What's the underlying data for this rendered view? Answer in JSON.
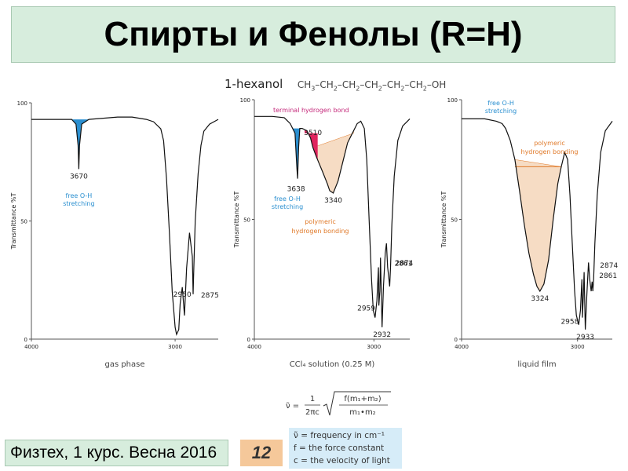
{
  "slide": {
    "title": "Спирты и Фенолы (R=H)",
    "footer": "Физтех, 1 курс. Весна 2016",
    "page_number": "12"
  },
  "compound": {
    "name": "1-hexanol",
    "formula_parts": [
      "CH",
      "3",
      "–CH",
      "2",
      "–CH",
      "2",
      "–CH",
      "2",
      "–CH",
      "2",
      "–CH",
      "2",
      "–OH"
    ]
  },
  "formula": {
    "lhs": "ν̃ =",
    "frac_num": "1",
    "frac_den": "2πc",
    "sqrt_num": "f(m₁+m₂)",
    "sqrt_den": "m₁•m₂"
  },
  "legend": {
    "line1": "ν̃ = frequency in cm⁻¹",
    "line2": "f = the force constant",
    "line3": "c = the velocity of light"
  },
  "colors": {
    "title_bg": "#d7eddd",
    "page_bg": "#f5c89a",
    "legend_bg": "#d6ecf8",
    "free_oh": "#2a8fd0",
    "terminal": "#e0245e",
    "polymeric_fill": "#f6dcc4",
    "polymeric_label": "#e07a2a",
    "terminal_label": "#c4287a"
  },
  "chart_data": [
    {
      "type": "line",
      "caption": "gas phase",
      "ylabel": "Transmittance %T",
      "xlim": [
        4000,
        2700
      ],
      "ylim": [
        0,
        100
      ],
      "x_ticks": [
        4000,
        3000
      ],
      "y_ticks": [
        0,
        50,
        100
      ],
      "series": [
        {
          "points": [
            [
              4000,
              93
            ],
            [
              3850,
              93
            ],
            [
              3720,
              93
            ],
            [
              3690,
              91
            ],
            [
              3675,
              82
            ],
            [
              3670,
              72
            ],
            [
              3665,
              82
            ],
            [
              3650,
              91
            ],
            [
              3600,
              93
            ],
            [
              3400,
              94
            ],
            [
              3300,
              94
            ],
            [
              3200,
              93
            ],
            [
              3150,
              92
            ],
            [
              3100,
              89
            ],
            [
              3080,
              84
            ],
            [
              3060,
              68
            ],
            [
              3040,
              45
            ],
            [
              3020,
              20
            ],
            [
              3000,
              5
            ],
            [
              2990,
              2
            ],
            [
              2975,
              4
            ],
            [
              2965,
              15
            ],
            [
              2950,
              22
            ],
            [
              2935,
              10
            ],
            [
              2920,
              30
            ],
            [
              2900,
              45
            ],
            [
              2880,
              35
            ],
            [
              2875,
              19
            ],
            [
              2870,
              30
            ],
            [
              2860,
              50
            ],
            [
              2840,
              70
            ],
            [
              2820,
              82
            ],
            [
              2800,
              88
            ],
            [
              2760,
              91
            ],
            [
              2700,
              93
            ]
          ]
        }
      ],
      "peaks": [
        {
          "x": 3670,
          "label": "3670"
        },
        {
          "x": 2950,
          "label": "2950"
        },
        {
          "x": 2875,
          "label": "2875"
        }
      ],
      "annotations": [
        {
          "text": "free O-H",
          "color": "free_oh"
        },
        {
          "text": "stretching",
          "color": "free_oh"
        }
      ]
    },
    {
      "type": "line",
      "caption": "CCl₄ solution (0.25 M)",
      "ylabel": "Transmittance %T",
      "xlim": [
        4000,
        2700
      ],
      "ylim": [
        0,
        100
      ],
      "x_ticks": [
        4000,
        3000
      ],
      "y_ticks": [
        0,
        50,
        100
      ],
      "series": [
        {
          "points": [
            [
              4000,
              93
            ],
            [
              3850,
              93
            ],
            [
              3750,
              92.5
            ],
            [
              3700,
              90
            ],
            [
              3660,
              86
            ],
            [
              3645,
              72
            ],
            [
              3638,
              67
            ],
            [
              3630,
              80
            ],
            [
              3620,
              88
            ],
            [
              3600,
              88
            ],
            [
              3560,
              87
            ],
            [
              3530,
              84
            ],
            [
              3510,
              80
            ],
            [
              3480,
              76
            ],
            [
              3430,
              70
            ],
            [
              3390,
              65
            ],
            [
              3370,
              62
            ],
            [
              3340,
              61
            ],
            [
              3300,
              66
            ],
            [
              3260,
              74
            ],
            [
              3220,
              82
            ],
            [
              3180,
              86
            ],
            [
              3140,
              90
            ],
            [
              3110,
              91
            ],
            [
              3080,
              88
            ],
            [
              3060,
              75
            ],
            [
              3040,
              50
            ],
            [
              3020,
              25
            ],
            [
              3005,
              12
            ],
            [
              2990,
              9
            ],
            [
              2975,
              16
            ],
            [
              2962,
              30
            ],
            [
              2959,
              14
            ],
            [
              2950,
              20
            ],
            [
              2945,
              34
            ],
            [
              2932,
              5
            ],
            [
              2920,
              22
            ],
            [
              2905,
              36
            ],
            [
              2895,
              40
            ],
            [
              2885,
              30
            ],
            [
              2874,
              25
            ],
            [
              2868,
              22
            ],
            [
              2861,
              30
            ],
            [
              2850,
              48
            ],
            [
              2830,
              68
            ],
            [
              2800,
              83
            ],
            [
              2760,
              89
            ],
            [
              2700,
              92
            ]
          ]
        }
      ],
      "peaks": [
        {
          "x": 3638,
          "label": "3638"
        },
        {
          "x": 3510,
          "label": "3510"
        },
        {
          "x": 3340,
          "label": "3340"
        },
        {
          "x": 2959,
          "label": "2959"
        },
        {
          "x": 2932,
          "label": "2932"
        },
        {
          "x": 2874,
          "label": "2874"
        },
        {
          "x": 2861,
          "label": "2861"
        }
      ],
      "annotations": [
        {
          "text": "terminal hydrogen bond",
          "color": "terminal_label"
        },
        {
          "text": "free O-H",
          "color": "free_oh"
        },
        {
          "text": "stretching",
          "color": "free_oh"
        },
        {
          "text": "polymeric",
          "color": "polymeric_label"
        },
        {
          "text": "hydrogen bonding",
          "color": "polymeric_label"
        }
      ]
    },
    {
      "type": "line",
      "caption": "liquid film",
      "ylabel": "Transmittance %T",
      "xlim": [
        4000,
        2700
      ],
      "ylim": [
        0,
        100
      ],
      "x_ticks": [
        4000,
        3000
      ],
      "y_ticks": [
        0,
        50,
        100
      ],
      "series": [
        {
          "points": [
            [
              4000,
              92
            ],
            [
              3900,
              92
            ],
            [
              3800,
              92
            ],
            [
              3700,
              91
            ],
            [
              3650,
              90
            ],
            [
              3620,
              88
            ],
            [
              3580,
              83
            ],
            [
              3540,
              75
            ],
            [
              3500,
              62
            ],
            [
              3460,
              48
            ],
            [
              3420,
              36
            ],
            [
              3380,
              27
            ],
            [
              3350,
              22
            ],
            [
              3324,
              20
            ],
            [
              3290,
              23
            ],
            [
              3250,
              33
            ],
            [
              3210,
              50
            ],
            [
              3170,
              65
            ],
            [
              3140,
              72
            ],
            [
              3110,
              78
            ],
            [
              3085,
              75
            ],
            [
              3065,
              60
            ],
            [
              3045,
              40
            ],
            [
              3025,
              20
            ],
            [
              3010,
              10
            ],
            [
              2990,
              6
            ],
            [
              2975,
              12
            ],
            [
              2962,
              25
            ],
            [
              2958,
              9
            ],
            [
              2950,
              18
            ],
            [
              2943,
              28
            ],
            [
              2933,
              4
            ],
            [
              2920,
              18
            ],
            [
              2905,
              32
            ],
            [
              2895,
              25
            ],
            [
              2882,
              20
            ],
            [
              2874,
              24
            ],
            [
              2868,
              20
            ],
            [
              2861,
              25
            ],
            [
              2850,
              40
            ],
            [
              2830,
              60
            ],
            [
              2800,
              78
            ],
            [
              2760,
              87
            ],
            [
              2700,
              91
            ]
          ]
        }
      ],
      "peaks": [
        {
          "x": 3324,
          "label": "3324"
        },
        {
          "x": 2958,
          "label": "2958"
        },
        {
          "x": 2933,
          "label": "2933"
        },
        {
          "x": 2874,
          "label": "2874"
        },
        {
          "x": 2861,
          "label": "2861"
        }
      ],
      "annotations": [
        {
          "text": "free O-H",
          "color": "free_oh"
        },
        {
          "text": "stretching",
          "color": "free_oh"
        },
        {
          "text": "polymeric",
          "color": "polymeric_label"
        },
        {
          "text": "hydrogen bonding",
          "color": "polymeric_label"
        }
      ]
    }
  ]
}
